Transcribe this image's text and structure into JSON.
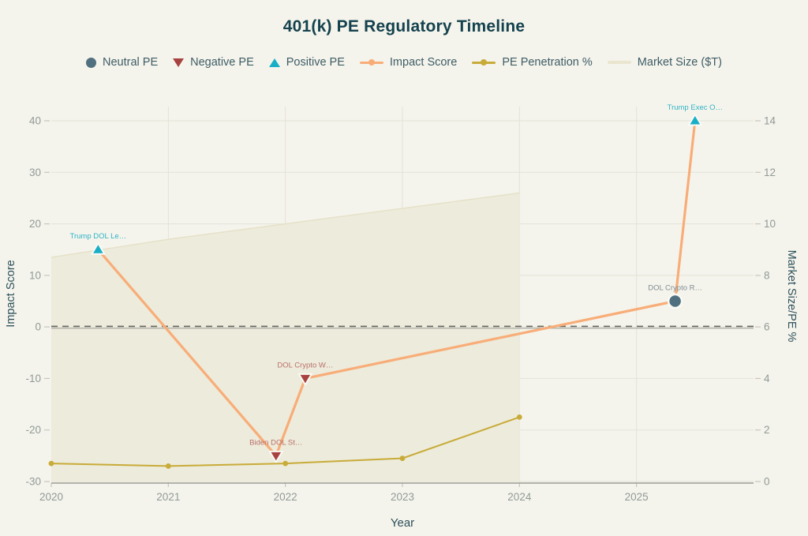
{
  "title": "401(k) PE Regulatory Timeline",
  "legend": [
    {
      "label": "Neutral PE",
      "marker": "circle",
      "color": "#50707f"
    },
    {
      "label": "Negative PE",
      "marker": "triangle-down",
      "color": "#a84240"
    },
    {
      "label": "Positive PE",
      "marker": "triangle-up",
      "color": "#18aec6"
    },
    {
      "label": "Impact Score",
      "marker": "line-dot",
      "color": "#f8ad78"
    },
    {
      "label": "PE Penetration %",
      "marker": "line-dot",
      "color": "#c8ab38"
    },
    {
      "label": "Market Size ($T)",
      "marker": "line",
      "color": "#e9e5cf"
    }
  ],
  "chart_data": {
    "type": "line",
    "title": "401(k) PE Regulatory Timeline",
    "xlabel": "Year",
    "ylabel_left": "Impact Score",
    "ylabel_right": "Market Size/PE %",
    "x_domain": [
      2020,
      2026
    ],
    "x_ticks": [
      "2020",
      "2021",
      "2022",
      "2023",
      "2024",
      "2025"
    ],
    "y_left": {
      "min": -30,
      "max": 40,
      "ticks": [
        "40",
        "30",
        "20",
        "10",
        "0",
        "-10",
        "-20",
        "-30"
      ]
    },
    "y_right": {
      "min": 0,
      "max": 14,
      "ticks": [
        "14",
        "12",
        "10",
        "8",
        "6",
        "4",
        "2",
        "0"
      ]
    },
    "zero_line": true,
    "grid": true,
    "legend_position": "top",
    "events": [
      {
        "label": "Trump DOL Le…",
        "x": 2020.4,
        "impact": 15,
        "sentiment": "positive"
      },
      {
        "label": "Biden DOL St…",
        "x": 2021.92,
        "impact": -25,
        "sentiment": "negative"
      },
      {
        "label": "DOL Crypto W…",
        "x": 2022.17,
        "impact": -10,
        "sentiment": "negative"
      },
      {
        "label": "DOL Crypto R…",
        "x": 2025.33,
        "impact": 5,
        "sentiment": "neutral"
      },
      {
        "label": "Trump Exec O…",
        "x": 2025.5,
        "impact": 40,
        "sentiment": "positive"
      }
    ],
    "series": [
      {
        "name": "Impact Score",
        "axis": "left",
        "type": "line",
        "x": [
          2020.4,
          2021.92,
          2022.17,
          2025.33,
          2025.5
        ],
        "values": [
          15,
          -25,
          -10,
          5,
          40
        ]
      },
      {
        "name": "PE Penetration %",
        "axis": "right",
        "type": "line",
        "x": [
          2020,
          2021,
          2022,
          2023,
          2024
        ],
        "values": [
          0.7,
          0.6,
          0.7,
          0.9,
          2.5
        ]
      },
      {
        "name": "Market Size ($T)",
        "axis": "right",
        "type": "area",
        "x": [
          2020,
          2021,
          2022,
          2023,
          2024
        ],
        "values": [
          8.7,
          9.4,
          10.0,
          10.6,
          11.2
        ]
      }
    ],
    "colors": {
      "impact_line": "#f8ad78",
      "penetration_line": "#c8ab38",
      "area_fill": "#edebdb",
      "area_edge": "#e5e1c9",
      "positive": "#18aec6",
      "negative": "#a84240",
      "neutral": "#50707f",
      "positive_label": "#2fb3c6",
      "negative_label": "#b96f6a",
      "neutral_label": "#7c8d94",
      "grid": "#e3e2d8",
      "tick_text": "#909a96",
      "zero_solid": "#b4b4ad",
      "zero_dash": "#64645f",
      "axis_line": "#9d9d96",
      "marker_halo": "#fafaf5"
    }
  }
}
